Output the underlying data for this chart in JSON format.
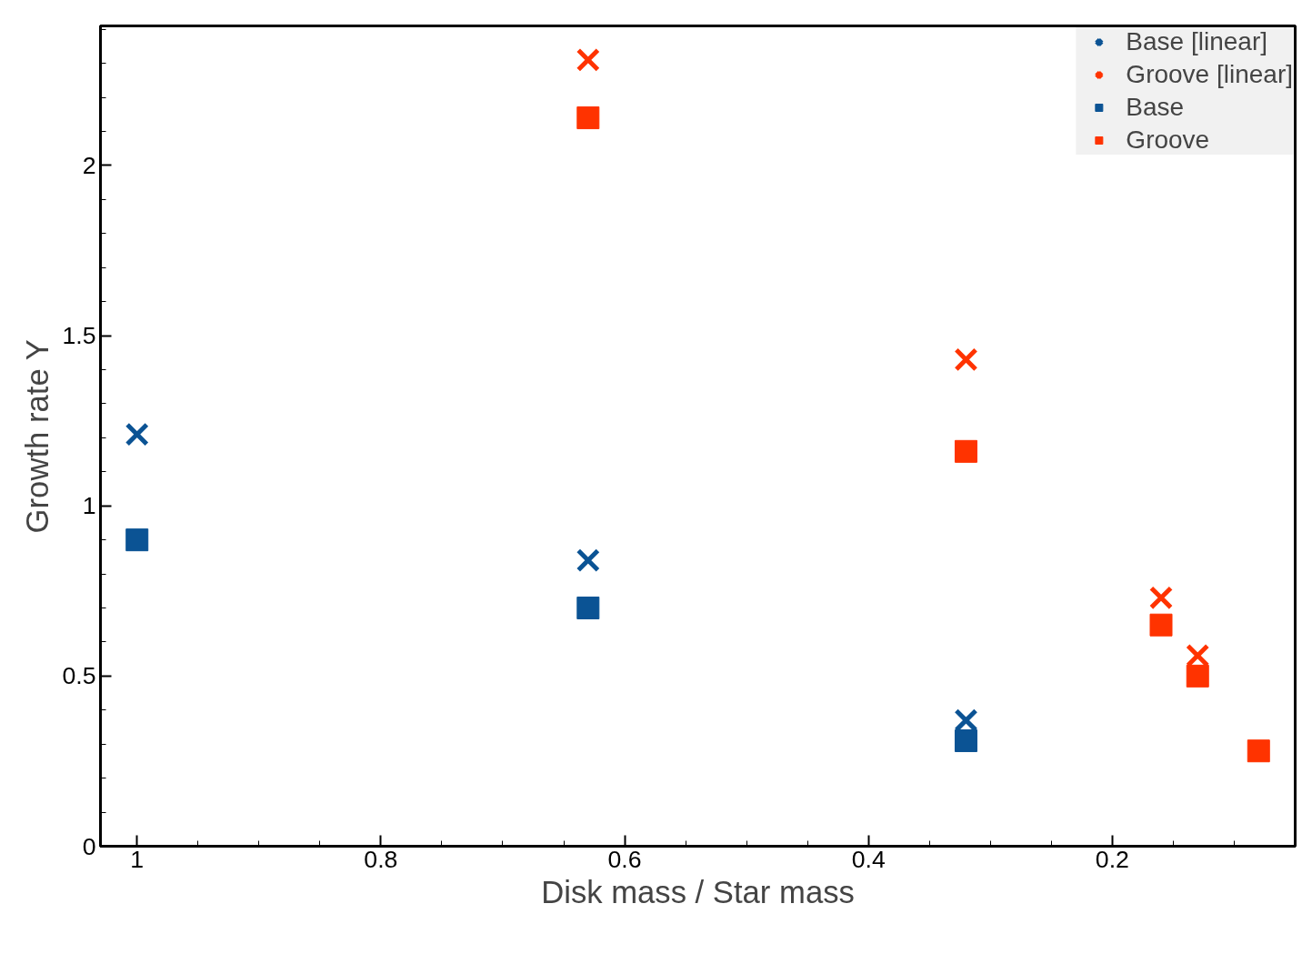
{
  "chart_data": {
    "type": "scatter",
    "xlabel": "Disk mass / Star mass",
    "ylabel": "Growth rate Y",
    "xlim": [
      1.03,
      0.05
    ],
    "ylim": [
      0,
      2.41
    ],
    "xticks": [
      1,
      0.8,
      0.6,
      0.4,
      0.2
    ],
    "yticks": [
      0,
      0.5,
      1,
      1.5,
      2
    ],
    "grid": false,
    "legend": "top right",
    "series": [
      {
        "name": "Base [linear]",
        "color": "#0b5394",
        "marker": "cross",
        "x": [
          1,
          0.63,
          0.32
        ],
        "values": [
          1.21,
          0.84,
          0.37
        ]
      },
      {
        "name": "Groove [linear]",
        "color": "#ff3300",
        "marker": "cross",
        "x": [
          0.63,
          0.32,
          0.16,
          0.13
        ],
        "values": [
          2.31,
          1.43,
          0.73,
          0.56
        ]
      },
      {
        "name": "Base",
        "color": "#0b5394",
        "marker": "square",
        "x": [
          1,
          0.63,
          0.32
        ],
        "values": [
          0.9,
          0.7,
          0.31
        ]
      },
      {
        "name": "Groove",
        "color": "#ff3300",
        "marker": "square",
        "x": [
          0.63,
          0.32,
          0.16,
          0.13,
          0.08
        ],
        "values": [
          2.14,
          1.16,
          0.65,
          0.5,
          0.28
        ]
      }
    ]
  }
}
